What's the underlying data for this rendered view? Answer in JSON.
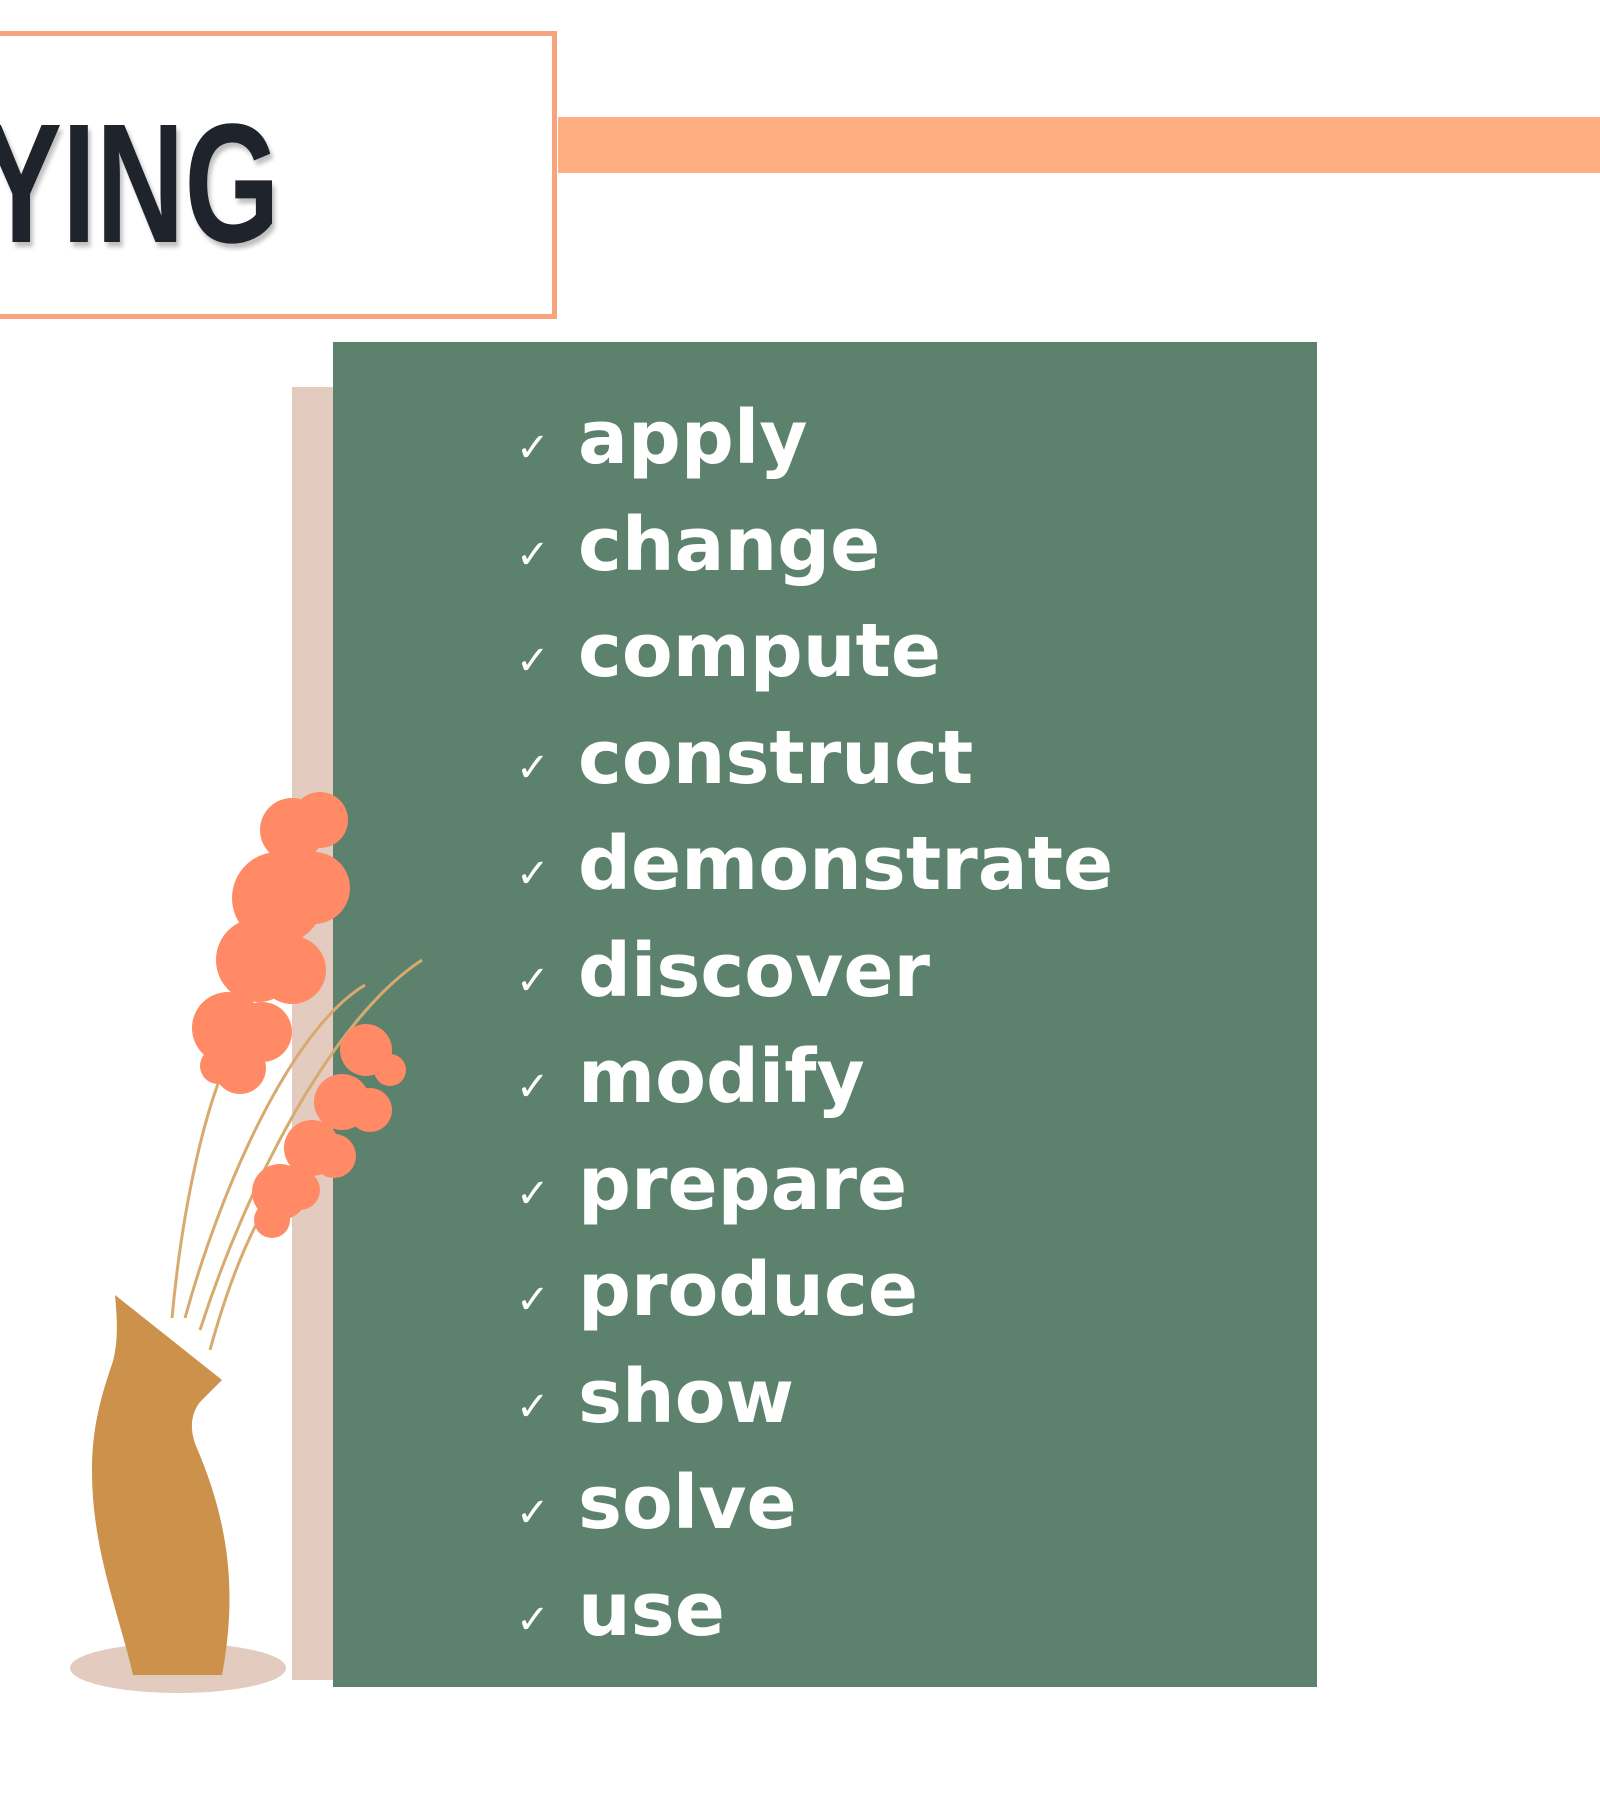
{
  "header": {
    "title": "YING"
  },
  "verbs": {
    "check_glyph": "✓",
    "items": [
      "apply",
      "change",
      "compute",
      "construct",
      "demonstrate",
      "discover",
      "modify",
      "prepare",
      "produce",
      "show",
      "solve",
      "use"
    ]
  },
  "colors": {
    "accent": "#ffae82",
    "panel": "#5c826e",
    "panel_shadow": "#e4cbbf",
    "title_text": "#1f232b",
    "flower": "#ff8a65",
    "vase": "#cc914a",
    "stem": "#d9aa6f"
  },
  "illustration": {
    "icon": "vase-with-flowers-illustration"
  }
}
